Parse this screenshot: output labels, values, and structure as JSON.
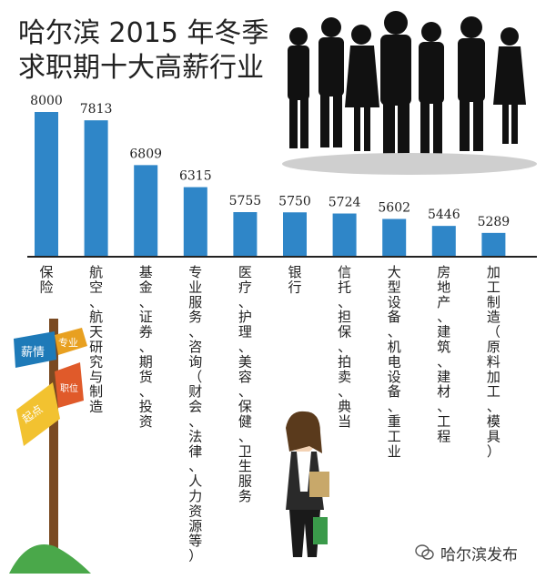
{
  "title_line1": "哈尔滨 2015 年冬季",
  "title_line2": "求职期十大高薪行业",
  "watermark": "哈尔滨发布",
  "signpost_labels": [
    "薪情",
    "专业",
    "起点",
    "职位"
  ],
  "colors": {
    "bar": "#2f86c8",
    "axis": "#222222",
    "text": "#222222"
  },
  "chart_data": {
    "type": "bar",
    "title": "哈尔滨 2015 年冬季求职期十大高薪行业",
    "categories": [
      "保险",
      "航空、航天研究与制造",
      "基金、证券、期货、投资",
      "专业服务、咨询（财会、法律、人力资源等）",
      "医疗、护理、美容、保健、卫生服务",
      "银行",
      "信托、担保、拍卖、典当",
      "大型设备、机电设备、重工业",
      "房地产、建筑、建材、工程",
      "加工制造（原料加工、模具）"
    ],
    "values": [
      8000,
      7813,
      6809,
      6315,
      5755,
      5750,
      5724,
      5602,
      5446,
      5289
    ],
    "value_labels": [
      "8000",
      "7813",
      "6809",
      "6315",
      "5755",
      "5750",
      "5724",
      "5602",
      "5446",
      "5289"
    ],
    "xlabel": "",
    "ylabel": "",
    "ylim": [
      5000,
      8000
    ],
    "grid": false,
    "legend": "none"
  }
}
